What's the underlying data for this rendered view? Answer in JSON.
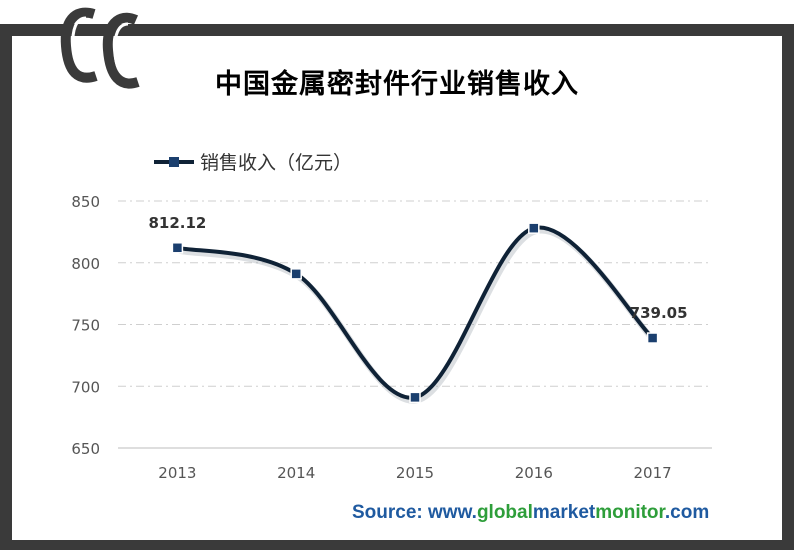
{
  "header": {
    "title": "中国金属密封件行业销售收入"
  },
  "icons": {
    "logo": "cc-chain-logo"
  },
  "colors": {
    "line": "#0f2236",
    "marker": "#1b3f6e",
    "frame": "#3a3a3a",
    "grid": "#cfcfcf",
    "source_blue": "#1f5aa0",
    "source_green": "#2e9e3a"
  },
  "chart_data": {
    "type": "line",
    "title": "中国金属密封件行业销售收入",
    "categories": [
      "2013",
      "2014",
      "2015",
      "2016",
      "2017"
    ],
    "series": [
      {
        "name": "销售收入（亿元）",
        "values": [
          812.12,
          791,
          691,
          828,
          739.05
        ]
      }
    ],
    "data_labels": [
      {
        "index": 0,
        "text": "812.12"
      },
      {
        "index": 4,
        "text": "739.05"
      }
    ],
    "y_ticks": [
      "650",
      "700",
      "750",
      "800",
      "850"
    ],
    "ylim": [
      650,
      850
    ],
    "grid": true,
    "legend": "top-left",
    "smooth": true
  },
  "footer": {
    "source_prefix": "Source: www.",
    "source_global": "global",
    "source_market": "market",
    "source_monitor": "monitor",
    "source_suffix": ".com"
  }
}
